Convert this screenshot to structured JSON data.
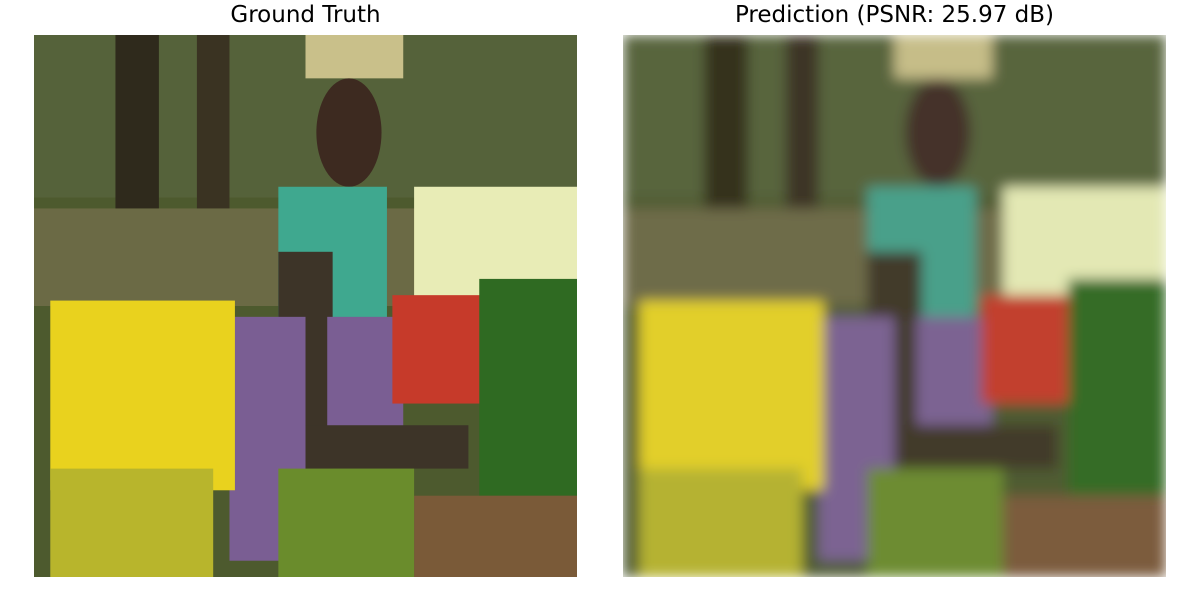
{
  "panels": [
    {
      "title": "Ground Truth",
      "image": "low-resolution market scene: woman with basket on head, yellow and white and red flowers, green foliage"
    },
    {
      "title": "Prediction (PSNR: 25.97 dB)",
      "image": "blurred reconstruction of the same market scene"
    }
  ],
  "colors": {
    "background_foliage": "#4d5a2e",
    "dark_trunk": "#2f2a1c",
    "skin": "#3d2a20",
    "teal_top": "#3fa88f",
    "purple_cloth": "#7a5e93",
    "yellow_flowers": "#e9d21e",
    "white_flowers": "#e8ecb6",
    "red_flowers": "#c63a2a",
    "green_leaves": "#2f6a22",
    "brown_ground": "#7a5a38"
  }
}
